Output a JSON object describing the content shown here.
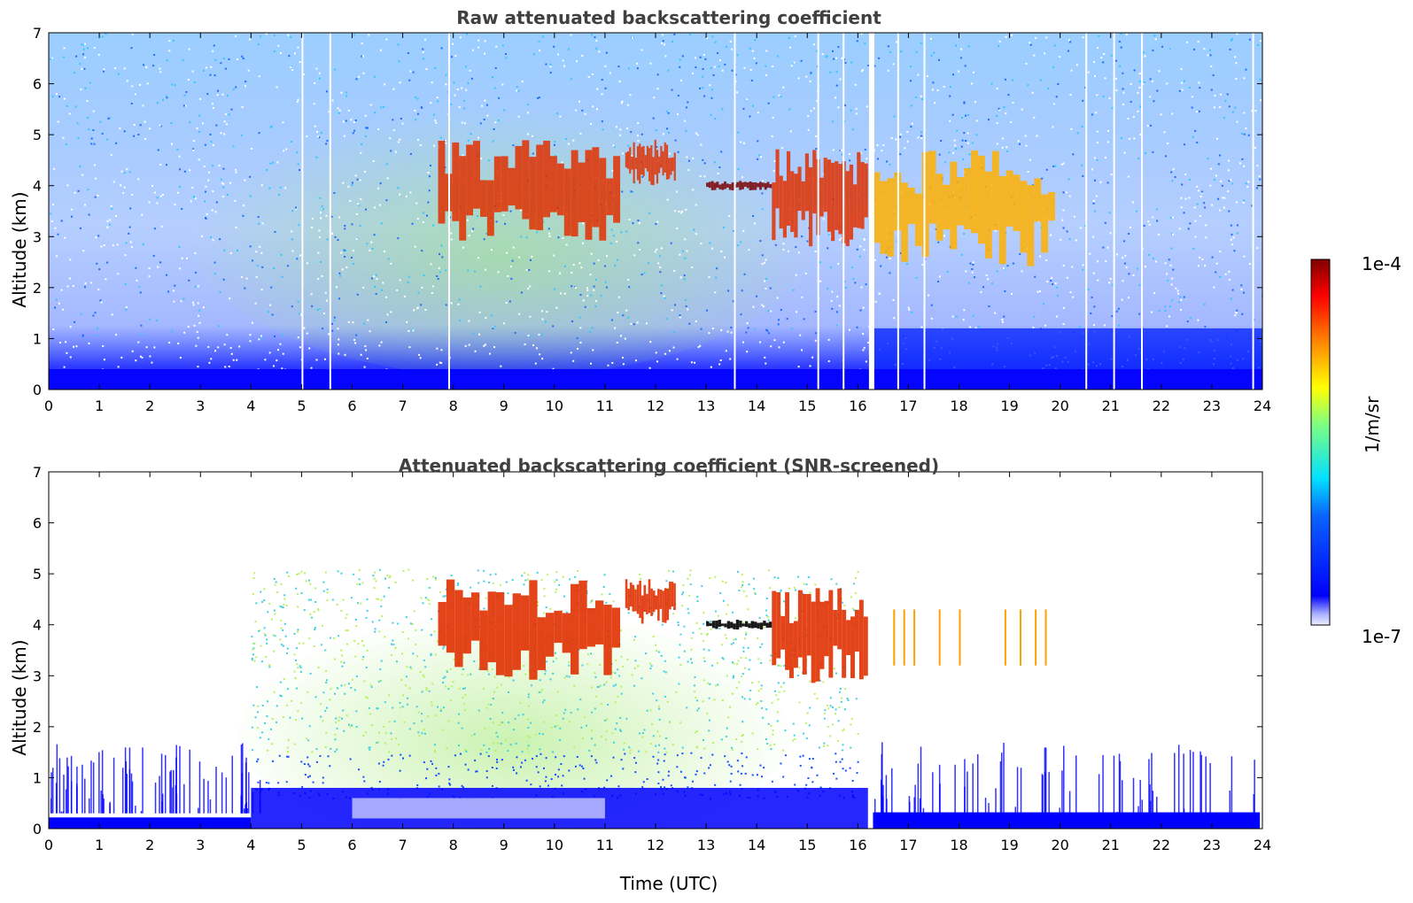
{
  "colors": {
    "jet": [
      "#000080",
      "#0000ff",
      "#0080ff",
      "#00ffff",
      "#80ff80",
      "#ffff00",
      "#ff8000",
      "#ff0000",
      "#800000"
    ],
    "cloud_core": "#8b0000",
    "black_mask": "#000000"
  },
  "chart_data": [
    {
      "type": "heatmap",
      "title": "Raw attenuated backscattering coefficient",
      "xlabel": "",
      "ylabel": "Altitude (km)",
      "x_ticks": [
        "0",
        "1",
        "2",
        "3",
        "4",
        "5",
        "6",
        "7",
        "8",
        "9",
        "10",
        "11",
        "12",
        "13",
        "14",
        "15",
        "16",
        "17",
        "18",
        "19",
        "20",
        "21",
        "22",
        "23",
        "24"
      ],
      "y_ticks": [
        "0",
        "1",
        "2",
        "3",
        "4",
        "5",
        "6",
        "7"
      ],
      "xlim": [
        0,
        24
      ],
      "ylim": [
        0,
        7
      ],
      "cloud_layers": [
        {
          "t_start": 7.7,
          "t_end": 11.3,
          "base_km": 2.9,
          "top_km": 4.9,
          "intensity": "high"
        },
        {
          "t_start": 11.4,
          "t_end": 12.4,
          "base_km": 4.0,
          "top_km": 4.9,
          "intensity": "high"
        },
        {
          "t_start": 13.0,
          "t_end": 14.3,
          "base_km": 3.9,
          "top_km": 4.1,
          "intensity": "very high"
        },
        {
          "t_start": 14.3,
          "t_end": 16.2,
          "base_km": 2.8,
          "top_km": 4.8,
          "intensity": "high"
        },
        {
          "t_start": 16.3,
          "t_end": 19.9,
          "base_km": 2.4,
          "top_km": 4.7,
          "intensity": "medium"
        }
      ],
      "boundary_layer_top_km": 0.4
    },
    {
      "type": "heatmap",
      "title": "Attenuated backscattering coefficient (SNR-screened)",
      "xlabel": "Time (UTC)",
      "ylabel": "Altitude (km)",
      "x_ticks": [
        "0",
        "1",
        "2",
        "3",
        "4",
        "5",
        "6",
        "7",
        "8",
        "9",
        "10",
        "11",
        "12",
        "13",
        "14",
        "15",
        "16",
        "17",
        "18",
        "19",
        "20",
        "21",
        "22",
        "23",
        "24"
      ],
      "y_ticks": [
        "0",
        "1",
        "2",
        "3",
        "4",
        "5",
        "6",
        "7"
      ],
      "xlim": [
        0,
        24
      ],
      "ylim": [
        0,
        7
      ],
      "screened": true
    }
  ],
  "colorbar": {
    "max_label": "1e-4",
    "min_label": "1e-7",
    "unit": "1/m/sr"
  }
}
